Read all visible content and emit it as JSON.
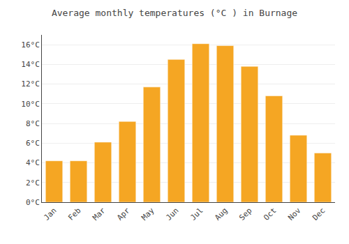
{
  "chart_data": {
    "type": "bar",
    "title": "Average monthly temperatures (°C ) in Burnage",
    "categories": [
      "Jan",
      "Feb",
      "Mar",
      "Apr",
      "May",
      "Jun",
      "Jul",
      "Aug",
      "Sep",
      "Oct",
      "Nov",
      "Dec"
    ],
    "values": [
      4.2,
      4.2,
      6.1,
      8.2,
      11.7,
      14.5,
      16.1,
      15.9,
      13.8,
      10.8,
      6.8,
      5.0
    ],
    "color": "#F5A623",
    "ylim": [
      0,
      17
    ],
    "yticks": [
      {
        "value": 0,
        "label": "0°C"
      },
      {
        "value": 2,
        "label": "2°C"
      },
      {
        "value": 4,
        "label": "4°C"
      },
      {
        "value": 6,
        "label": "6°C"
      },
      {
        "value": 8,
        "label": "8°C"
      },
      {
        "value": 10,
        "label": "10°C"
      },
      {
        "value": 12,
        "label": "12°C"
      },
      {
        "value": 14,
        "label": "14°C"
      },
      {
        "value": 16,
        "label": "16°C"
      }
    ],
    "grid": true
  }
}
